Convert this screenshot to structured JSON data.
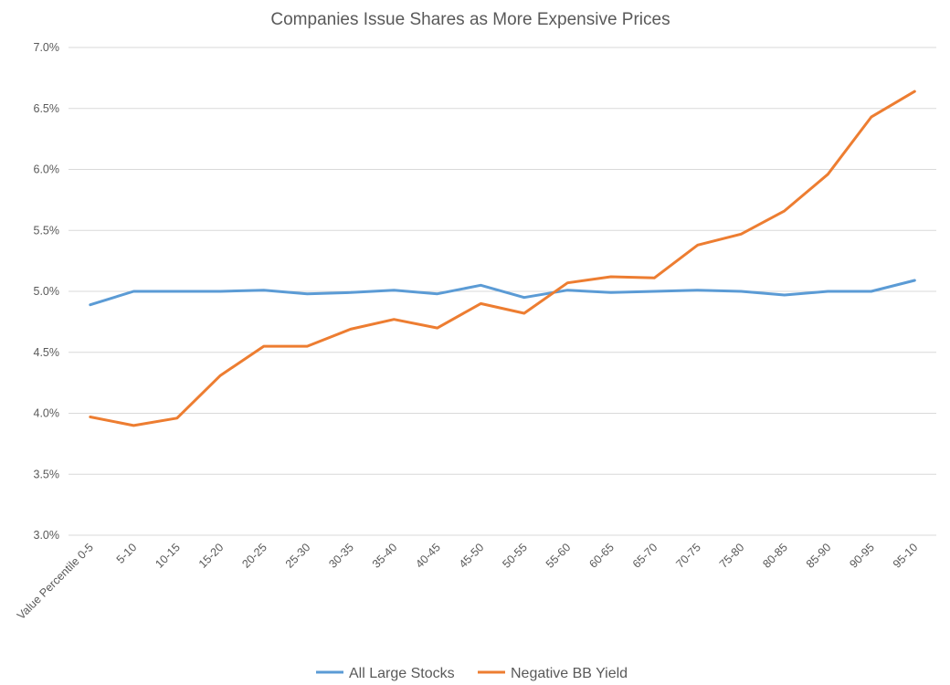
{
  "chart_data": {
    "type": "line",
    "title": "Companies Issue Shares as More Expensive Prices",
    "xlabel": "",
    "ylabel": "",
    "categories": [
      "Value Percentile 0-5",
      "5-10",
      "10-15",
      "15-20",
      "20-25",
      "25-30",
      "30-35",
      "35-40",
      "40-45",
      "45-50",
      "50-55",
      "55-60",
      "60-65",
      "65-70",
      "70-75",
      "75-80",
      "80-85",
      "85-90",
      "90-95",
      "95-10"
    ],
    "ylim": [
      0.03,
      0.07
    ],
    "yticks": [
      0.03,
      0.035,
      0.04,
      0.045,
      0.05,
      0.055,
      0.06,
      0.065,
      0.07
    ],
    "ytick_labels": [
      "3.0%",
      "3.5%",
      "4.0%",
      "4.5%",
      "5.0%",
      "5.5%",
      "6.0%",
      "6.5%",
      "7.0%"
    ],
    "grid": true,
    "legend_position": "bottom",
    "series": [
      {
        "name": "All Large Stocks",
        "color": "#5b9bd5",
        "values": [
          0.0489,
          0.05,
          0.05,
          0.05,
          0.0501,
          0.0498,
          0.0499,
          0.0501,
          0.0498,
          0.0505,
          0.0495,
          0.0501,
          0.0499,
          0.05,
          0.0501,
          0.05,
          0.0497,
          0.05,
          0.05,
          0.0509
        ]
      },
      {
        "name": "Negative BB Yield",
        "color": "#ed7d31",
        "values": [
          0.0397,
          0.039,
          0.0396,
          0.0431,
          0.0455,
          0.0455,
          0.0469,
          0.0477,
          0.047,
          0.049,
          0.0482,
          0.0507,
          0.0512,
          0.0511,
          0.0538,
          0.0547,
          0.0566,
          0.0596,
          0.0643,
          0.0664
        ]
      }
    ]
  }
}
